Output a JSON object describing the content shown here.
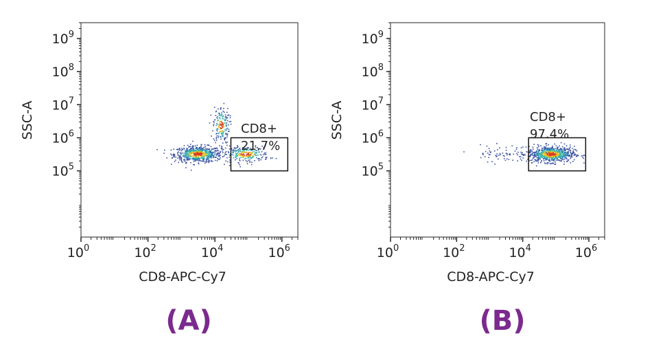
{
  "chart_data": [
    {
      "type": "scatter",
      "panel": "(A)",
      "xlabel": "CD8-APC-Cy7",
      "ylabel": "SSC-A",
      "x_scale": "log",
      "y_scale": "log",
      "xlim": [
        1,
        3000000
      ],
      "ylim": [
        1000,
        3000000000
      ],
      "x_ticks": [
        {
          "base": "10",
          "exp": "0"
        },
        {
          "base": "10",
          "exp": "2"
        },
        {
          "base": "10",
          "exp": "4"
        },
        {
          "base": "10",
          "exp": "6"
        }
      ],
      "y_ticks": [
        {
          "base": "10",
          "exp": "5"
        },
        {
          "base": "10",
          "exp": "6"
        },
        {
          "base": "10",
          "exp": "7"
        },
        {
          "base": "10",
          "exp": "8"
        },
        {
          "base": "10",
          "exp": "9"
        }
      ],
      "gate": {
        "label": "CD8+",
        "percent": "21.7%",
        "x_range": [
          30000,
          1500000
        ],
        "y_range": [
          100000,
          1000000
        ]
      },
      "populations": [
        {
          "x": 3000,
          "y": 330000,
          "count": 650,
          "note": "main cluster"
        },
        {
          "x": 15000,
          "y": 2500000,
          "count": 180,
          "note": "vertical arm"
        },
        {
          "x": 80000,
          "y": 330000,
          "count": 260,
          "note": "gated cluster"
        }
      ]
    },
    {
      "type": "scatter",
      "panel": "(B)",
      "xlabel": "CD8-APC-Cy7",
      "ylabel": "SSC-A",
      "x_scale": "log",
      "y_scale": "log",
      "xlim": [
        1,
        3000000
      ],
      "ylim": [
        1000,
        3000000000
      ],
      "x_ticks": [
        {
          "base": "10",
          "exp": "0"
        },
        {
          "base": "10",
          "exp": "2"
        },
        {
          "base": "10",
          "exp": "4"
        },
        {
          "base": "10",
          "exp": "6"
        }
      ],
      "y_ticks": [
        {
          "base": "10",
          "exp": "5"
        },
        {
          "base": "10",
          "exp": "6"
        },
        {
          "base": "10",
          "exp": "7"
        },
        {
          "base": "10",
          "exp": "8"
        },
        {
          "base": "10",
          "exp": "9"
        }
      ],
      "gate": {
        "label": "CD8+",
        "percent": "97.4%",
        "x_range": [
          15000,
          800000
        ],
        "y_range": [
          100000,
          1000000
        ]
      },
      "populations": [
        {
          "x": 70000,
          "y": 330000,
          "count": 750,
          "note": "gated cluster"
        },
        {
          "x": 3000,
          "y": 350000,
          "count": 70,
          "note": "scatter tail"
        }
      ]
    }
  ],
  "colors": {
    "density_low": "#3a4fa0",
    "density_mid": "#3fb8a6",
    "density_high": "#d93a1f",
    "panel_label": "#7b2a8e"
  }
}
